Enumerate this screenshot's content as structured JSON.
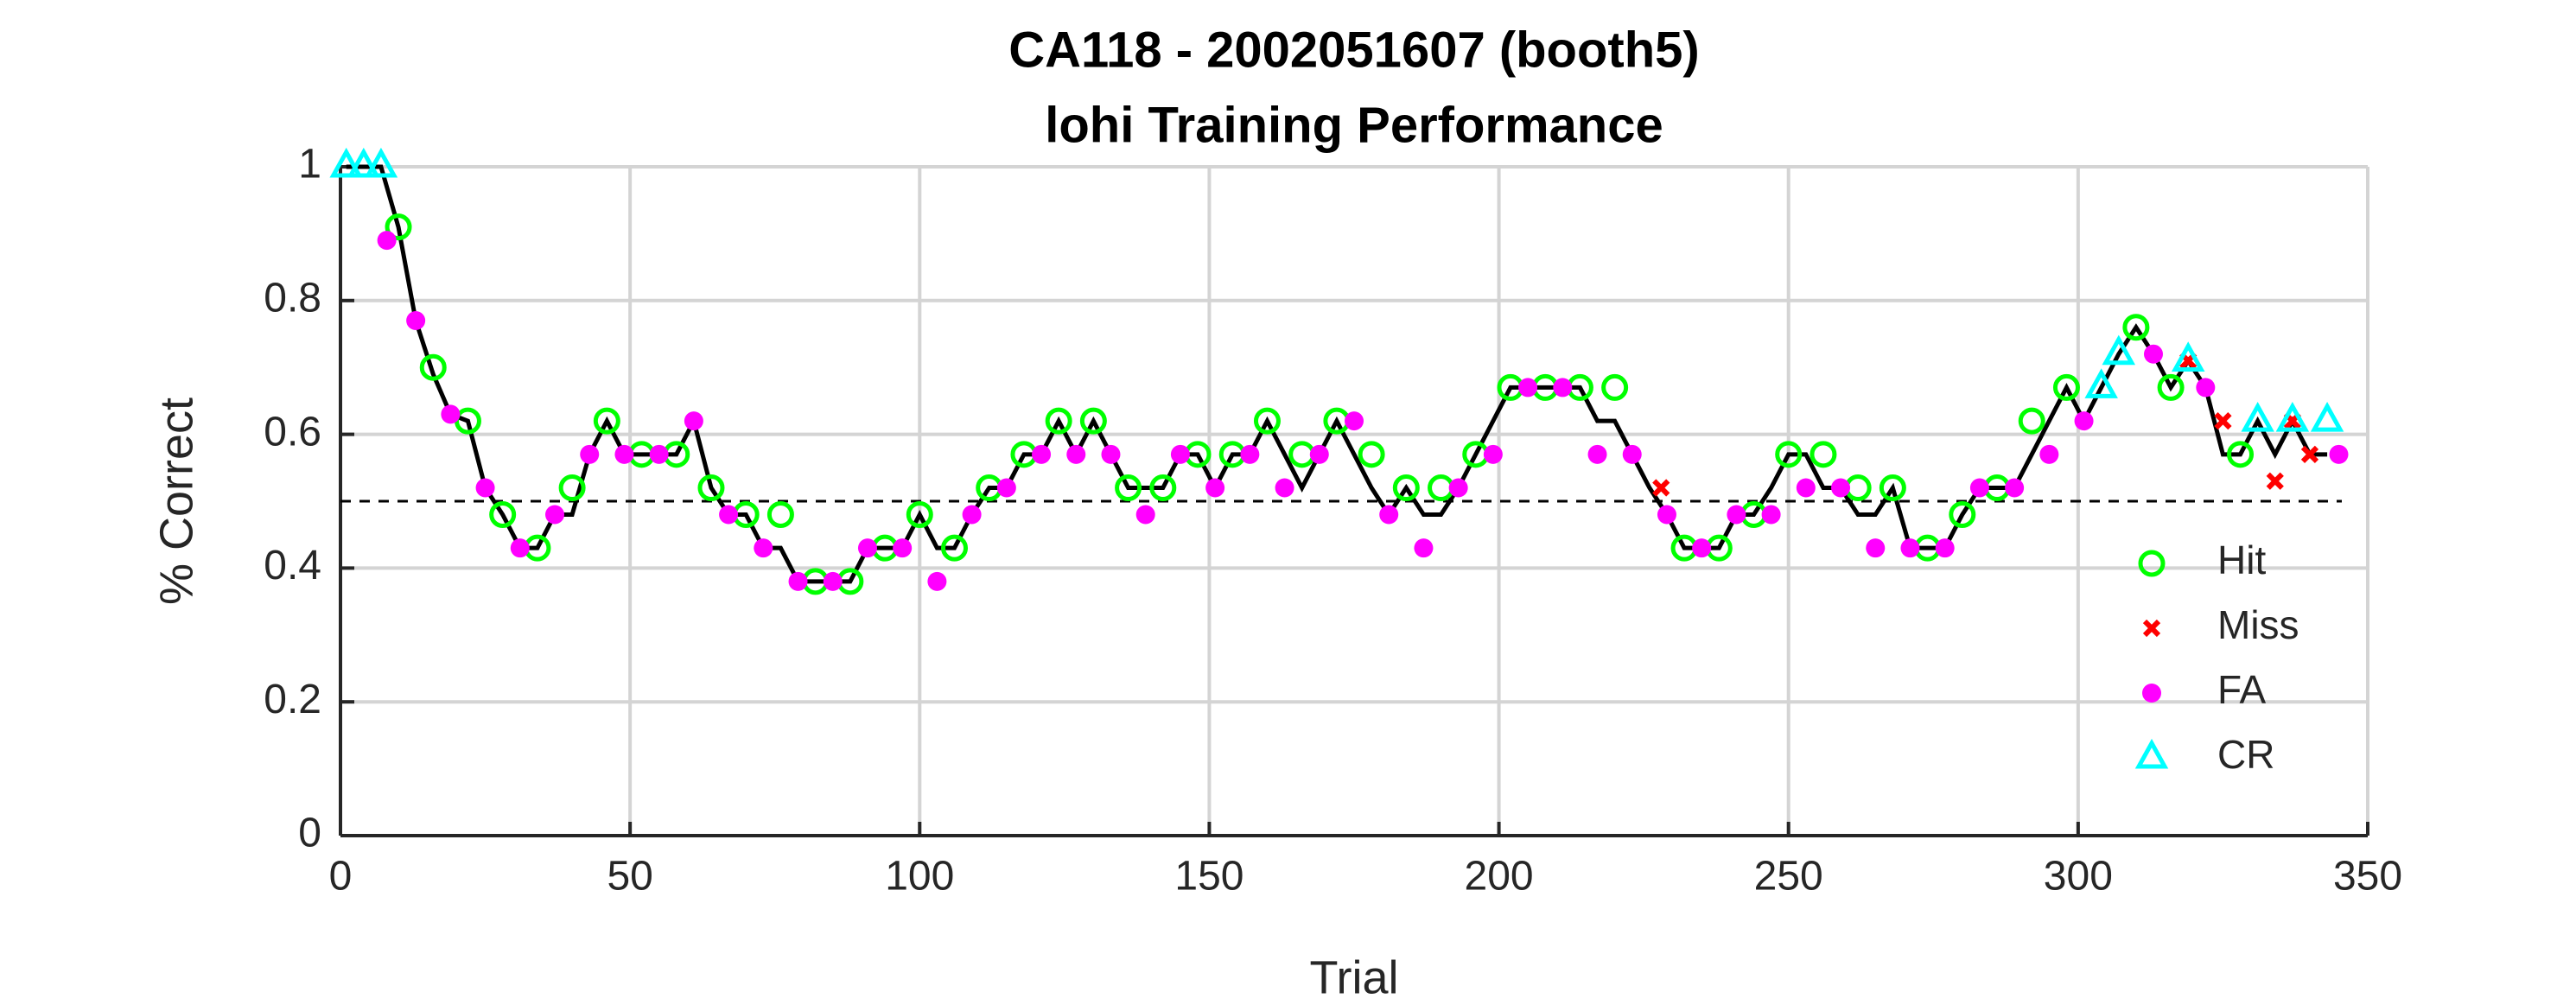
{
  "chart_data": {
    "type": "scatter",
    "title": "CA118 - 2002051607 (booth5)",
    "subtitle": "lohi Training Performance",
    "x_label": "Trial",
    "y_label": "% Correct",
    "xlim": [
      0,
      350
    ],
    "xticks": [
      0,
      50,
      100,
      150,
      200,
      250,
      300,
      350
    ],
    "ylim": [
      0,
      1
    ],
    "yticks": [
      0,
      0.2,
      0.4,
      0.6,
      0.8,
      1
    ],
    "grid": true,
    "reference_line": 0.5,
    "legend": "lower right",
    "line": {
      "color": "#000000",
      "x": [
        1,
        4,
        7,
        10,
        13,
        16,
        19,
        22,
        25,
        28,
        31,
        34,
        37,
        40,
        43,
        46,
        49,
        52,
        55,
        58,
        61,
        64,
        67,
        70,
        73,
        76,
        79,
        82,
        85,
        88,
        91,
        94,
        97,
        100,
        103,
        106,
        109,
        112,
        115,
        118,
        121,
        124,
        127,
        130,
        133,
        136,
        139,
        142,
        145,
        148,
        151,
        154,
        157,
        160,
        163,
        166,
        169,
        172,
        175,
        178,
        181,
        184,
        187,
        190,
        193,
        196,
        199,
        202,
        205,
        208,
        211,
        214,
        217,
        220,
        223,
        226,
        229,
        232,
        235,
        238,
        241,
        244,
        247,
        250,
        253,
        256,
        259,
        262,
        265,
        268,
        271,
        274,
        277,
        280,
        283,
        286,
        289,
        292,
        295,
        298,
        301,
        304,
        307,
        310,
        313,
        316,
        319,
        322,
        325,
        328,
        331,
        334,
        337,
        340,
        343
      ],
      "values": [
        1,
        1,
        1,
        0.91,
        0.77,
        0.69,
        0.63,
        0.62,
        0.52,
        0.48,
        0.43,
        0.43,
        0.48,
        0.48,
        0.57,
        0.62,
        0.57,
        0.57,
        0.57,
        0.57,
        0.62,
        0.52,
        0.48,
        0.48,
        0.43,
        0.43,
        0.38,
        0.38,
        0.38,
        0.38,
        0.43,
        0.43,
        0.43,
        0.48,
        0.43,
        0.43,
        0.48,
        0.52,
        0.52,
        0.57,
        0.57,
        0.62,
        0.57,
        0.62,
        0.57,
        0.52,
        0.52,
        0.52,
        0.57,
        0.57,
        0.52,
        0.57,
        0.57,
        0.62,
        0.57,
        0.52,
        0.57,
        0.62,
        0.57,
        0.52,
        0.48,
        0.52,
        0.48,
        0.48,
        0.52,
        0.57,
        0.62,
        0.67,
        0.67,
        0.67,
        0.67,
        0.67,
        0.62,
        0.62,
        0.57,
        0.52,
        0.48,
        0.43,
        0.43,
        0.43,
        0.48,
        0.48,
        0.52,
        0.57,
        0.57,
        0.52,
        0.52,
        0.48,
        0.48,
        0.52,
        0.43,
        0.43,
        0.43,
        0.48,
        0.52,
        0.52,
        0.52,
        0.57,
        0.62,
        0.67,
        0.62,
        0.67,
        0.72,
        0.76,
        0.72,
        0.67,
        0.71,
        0.67,
        0.57,
        0.57,
        0.62,
        0.57,
        0.62,
        0.57,
        0.57
      ]
    },
    "series": [
      {
        "name": "Hit",
        "color": "#00ff00",
        "marker": "circle",
        "x": [
          10,
          16,
          22,
          28,
          34,
          40,
          46,
          52,
          58,
          64,
          70,
          76,
          82,
          88,
          94,
          100,
          106,
          112,
          118,
          124,
          130,
          136,
          142,
          148,
          154,
          160,
          166,
          172,
          178,
          184,
          190,
          196,
          202,
          208,
          214,
          220,
          232,
          238,
          244,
          250,
          256,
          262,
          268,
          274,
          280,
          286,
          292,
          298,
          310,
          316,
          328
        ],
        "values": [
          0.91,
          0.7,
          0.62,
          0.48,
          0.43,
          0.52,
          0.62,
          0.57,
          0.57,
          0.52,
          0.48,
          0.48,
          0.38,
          0.38,
          0.43,
          0.48,
          0.43,
          0.52,
          0.57,
          0.62,
          0.62,
          0.52,
          0.52,
          0.57,
          0.57,
          0.62,
          0.57,
          0.62,
          0.57,
          0.52,
          0.52,
          0.57,
          0.67,
          0.67,
          0.67,
          0.67,
          0.43,
          0.43,
          0.48,
          0.57,
          0.57,
          0.52,
          0.52,
          0.43,
          0.48,
          0.52,
          0.62,
          0.67,
          0.76,
          0.67,
          0.57
        ]
      },
      {
        "name": "Miss",
        "color": "#ff0000",
        "marker": "x",
        "x": [
          228,
          319,
          325,
          334,
          337,
          340
        ],
        "values": [
          0.52,
          0.71,
          0.62,
          0.53,
          0.62,
          0.57
        ]
      },
      {
        "name": "FA",
        "color": "#ff00ff",
        "marker": "dot",
        "x": [
          8,
          13,
          19,
          25,
          31,
          37,
          43,
          49,
          55,
          61,
          67,
          73,
          79,
          85,
          91,
          97,
          103,
          109,
          115,
          121,
          127,
          133,
          139,
          145,
          151,
          157,
          163,
          169,
          175,
          181,
          187,
          193,
          199,
          205,
          211,
          217,
          223,
          229,
          235,
          241,
          247,
          253,
          259,
          265,
          271,
          277,
          283,
          289,
          295,
          301,
          313,
          322,
          345
        ],
        "values": [
          0.89,
          0.77,
          0.63,
          0.52,
          0.43,
          0.48,
          0.57,
          0.57,
          0.57,
          0.62,
          0.48,
          0.43,
          0.38,
          0.38,
          0.43,
          0.43,
          0.38,
          0.48,
          0.52,
          0.57,
          0.57,
          0.57,
          0.48,
          0.57,
          0.52,
          0.57,
          0.52,
          0.57,
          0.62,
          0.48,
          0.43,
          0.52,
          0.57,
          0.67,
          0.67,
          0.57,
          0.57,
          0.48,
          0.43,
          0.48,
          0.48,
          0.52,
          0.52,
          0.43,
          0.43,
          0.43,
          0.52,
          0.52,
          0.57,
          0.62,
          0.72,
          0.67,
          0.57
        ]
      },
      {
        "name": "CR",
        "color": "#00ffff",
        "marker": "triangle",
        "x": [
          1,
          4,
          7,
          304,
          307,
          319,
          331,
          337,
          343
        ],
        "values": [
          1,
          1,
          1,
          0.67,
          0.72,
          0.71,
          0.62,
          0.62,
          0.62
        ]
      }
    ]
  }
}
